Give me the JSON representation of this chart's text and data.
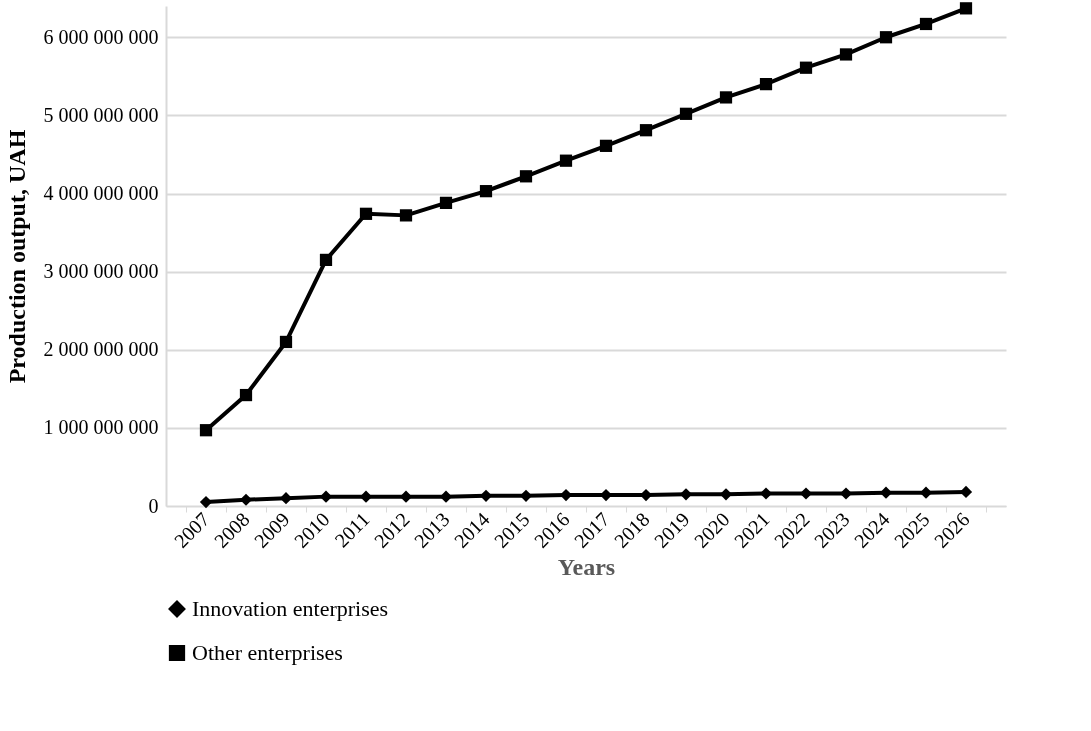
{
  "chart_data": {
    "type": "line",
    "xlabel": "Years",
    "ylabel": "Production output, UAH",
    "categories": [
      "2007",
      "2008",
      "2009",
      "2010",
      "2011",
      "2012",
      "2013",
      "2014",
      "2015",
      "2016",
      "2017",
      "2018",
      "2019",
      "2020",
      "2021",
      "2022",
      "2023",
      "2024",
      "2025",
      "2026"
    ],
    "series": [
      {
        "name": "Innovation enterprises",
        "color": "#000000",
        "marker": "diamond",
        "values": [
          50000000,
          80000000,
          100000000,
          120000000,
          120000000,
          120000000,
          120000000,
          130000000,
          130000000,
          140000000,
          140000000,
          140000000,
          150000000,
          150000000,
          160000000,
          160000000,
          160000000,
          170000000,
          170000000,
          180000000
        ]
      },
      {
        "name": "Other enterprises",
        "color": "#000000",
        "marker": "square",
        "values": [
          970000000,
          1420000000,
          2100000000,
          3150000000,
          3740000000,
          3720000000,
          3880000000,
          4030000000,
          4220000000,
          4420000000,
          4610000000,
          4810000000,
          5020000000,
          5230000000,
          5400000000,
          5610000000,
          5780000000,
          6000000000,
          6170000000,
          6370000000
        ]
      }
    ],
    "ylim": [
      0,
      6400000000
    ],
    "yticks": [
      0,
      {
        "value": 1000000000,
        "label": "1 000 000 000"
      },
      {
        "value": 2000000000,
        "label": "2 000 000 000"
      },
      {
        "value": 3000000000,
        "label": "3 000 000 000"
      },
      {
        "value": 4000000000,
        "label": "4 000 000 000"
      },
      {
        "value": 5000000000,
        "label": "5 000 000 000"
      },
      {
        "value": 6000000000,
        "label": "6 000 000 000"
      }
    ],
    "grid": "y",
    "legend": "bottom",
    "line_style": "solid"
  }
}
